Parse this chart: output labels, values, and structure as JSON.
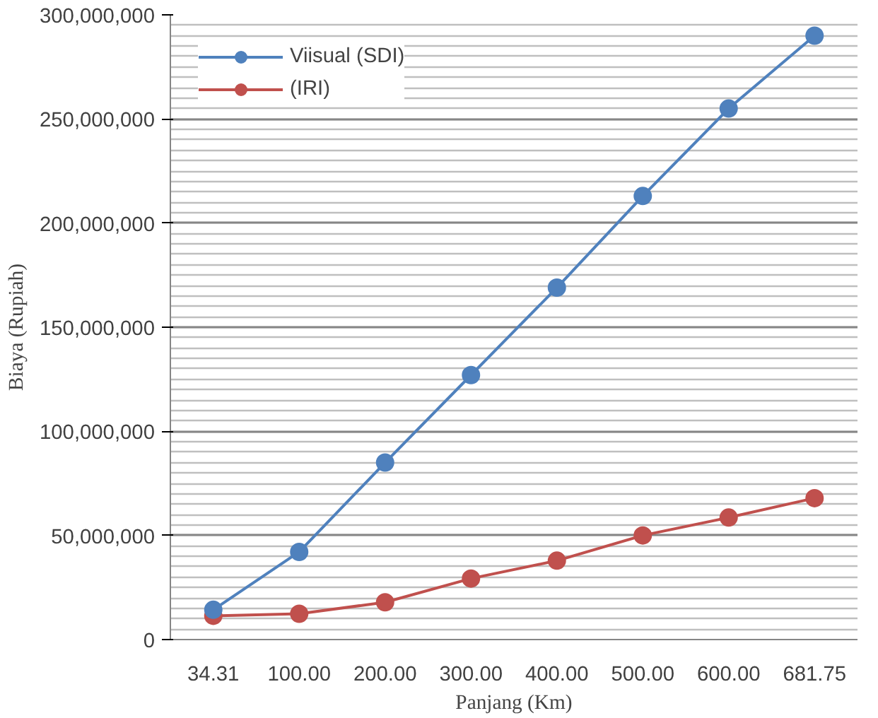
{
  "chart_data": {
    "type": "line",
    "xlabel": "Panjang (Km)",
    "ylabel": "Biaya (Rupiah)",
    "categories": [
      "34.31",
      "100.00",
      "200.00",
      "300.00",
      "400.00",
      "500.00",
      "600.00",
      "681.75"
    ],
    "series": [
      {
        "name": "Viisual (SDI)",
        "color": "#4f81bd",
        "values": [
          14300000,
          42100000,
          85000000,
          127000000,
          169000000,
          213000000,
          255000000,
          290000000
        ]
      },
      {
        "name": "(IRI)",
        "color": "#c0504d",
        "values": [
          11400000,
          12400000,
          17900000,
          29300000,
          37900000,
          50000000,
          58600000,
          67900000
        ]
      }
    ],
    "ylim": [
      0,
      300000000
    ],
    "yticks": [
      {
        "value": 0,
        "label": "0"
      },
      {
        "value": 50000000,
        "label": "50,000,000"
      },
      {
        "value": 100000000,
        "label": "100,000,000"
      },
      {
        "value": 150000000,
        "label": "150,000,000"
      },
      {
        "value": 200000000,
        "label": "200,000,000"
      },
      {
        "value": 250000000,
        "label": "250,000,000"
      },
      {
        "value": 300000000,
        "label": "300,000,000"
      }
    ],
    "grid": "y",
    "legend": "top left",
    "marker": "circle",
    "line_style": "solid"
  }
}
